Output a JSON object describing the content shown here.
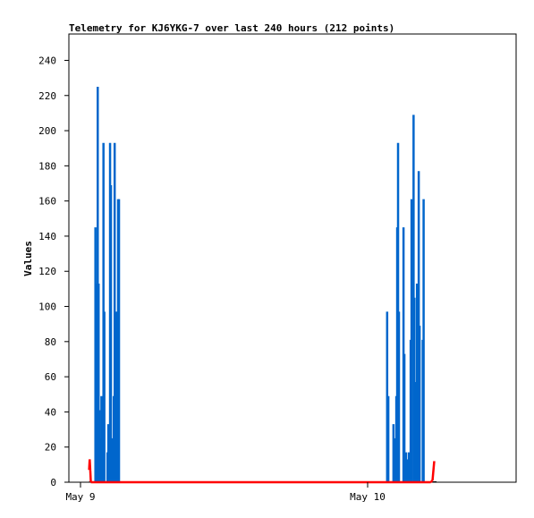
{
  "chart_data": {
    "type": "line",
    "title": "Telemetry for KJ6YKG-7 over last 240 hours (212 points)",
    "xlabel": "",
    "ylabel": "Values",
    "xlim": [
      0,
      1.5
    ],
    "ylim": [
      0,
      255
    ],
    "x_ticks": [
      {
        "value": 0.0,
        "label": "May 9"
      },
      {
        "value": 1.0,
        "label": "May 10"
      }
    ],
    "y_ticks": [
      0,
      20,
      40,
      60,
      80,
      100,
      120,
      140,
      160,
      180,
      200,
      220,
      240
    ],
    "grid": false,
    "series": [
      {
        "color": "#0066cc",
        "style": "spikes",
        "points": [
          [
            0.052,
            145
          ],
          [
            0.055,
            73
          ],
          [
            0.058,
            113
          ],
          [
            0.06,
            225
          ],
          [
            0.063,
            113
          ],
          [
            0.066,
            41
          ],
          [
            0.07,
            25
          ],
          [
            0.073,
            49
          ],
          [
            0.076,
            25
          ],
          [
            0.08,
            193
          ],
          [
            0.083,
            97
          ],
          [
            0.087,
            0
          ],
          [
            0.09,
            0
          ],
          [
            0.094,
            17
          ],
          [
            0.097,
            33
          ],
          [
            0.1,
            25
          ],
          [
            0.103,
            193
          ],
          [
            0.106,
            169
          ],
          [
            0.11,
            25
          ],
          [
            0.113,
            0
          ],
          [
            0.116,
            49
          ],
          [
            0.119,
            193
          ],
          [
            0.122,
            97
          ],
          [
            0.125,
            49
          ],
          [
            0.128,
            97
          ],
          [
            0.131,
            161
          ],
          [
            0.134,
            161
          ],
          [
            0.137,
            0
          ],
          [
            1.068,
            97
          ],
          [
            1.072,
            49
          ],
          [
            1.09,
            33
          ],
          [
            1.093,
            25
          ],
          [
            1.096,
            17
          ],
          [
            1.1,
            49
          ],
          [
            1.103,
            145
          ],
          [
            1.106,
            193
          ],
          [
            1.109,
            97
          ],
          [
            1.125,
            145
          ],
          [
            1.128,
            73
          ],
          [
            1.131,
            9
          ],
          [
            1.134,
            17
          ],
          [
            1.137,
            13
          ],
          [
            1.14,
            9
          ],
          [
            1.144,
            17
          ],
          [
            1.15,
            81
          ],
          [
            1.153,
            161
          ],
          [
            1.16,
            209
          ],
          [
            1.163,
            105
          ],
          [
            1.166,
            57
          ],
          [
            1.172,
            113
          ],
          [
            1.175,
            89
          ],
          [
            1.178,
            177
          ],
          [
            1.181,
            89
          ],
          [
            1.192,
            81
          ],
          [
            1.195,
            161
          ],
          [
            1.2,
            0
          ]
        ]
      },
      {
        "color": "#ff0000",
        "style": "line",
        "points": [
          [
            0.03,
            7
          ],
          [
            0.032,
            13
          ],
          [
            0.034,
            7
          ],
          [
            0.036,
            0
          ],
          [
            1.22,
            0
          ],
          [
            1.226,
            1
          ],
          [
            1.232,
            12
          ]
        ]
      }
    ]
  }
}
